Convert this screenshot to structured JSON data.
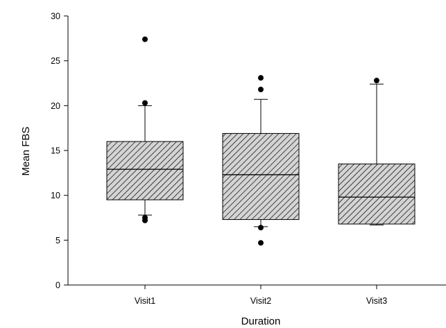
{
  "chart_data": {
    "type": "box",
    "title": "",
    "xlabel": "Duration",
    "ylabel": "Mean FBS",
    "ylim": [
      0,
      30
    ],
    "yticks": [
      0,
      5,
      10,
      15,
      20,
      25,
      30
    ],
    "grid": false,
    "categories": [
      "Visit1",
      "Visit2",
      "Visit3"
    ],
    "boxes": [
      {
        "category": "Visit1",
        "whisker_low": 7.8,
        "q1": 9.5,
        "median": 12.9,
        "q3": 16.0,
        "whisker_high": 20.0,
        "outliers": [
          7.2,
          7.5,
          20.3,
          27.4
        ]
      },
      {
        "category": "Visit2",
        "whisker_low": 6.5,
        "q1": 7.3,
        "median": 12.3,
        "q3": 16.9,
        "whisker_high": 20.7,
        "outliers": [
          6.4,
          4.7,
          21.8,
          23.1
        ]
      },
      {
        "category": "Visit3",
        "whisker_low": 6.7,
        "q1": 6.8,
        "median": 9.8,
        "q3": 13.5,
        "whisker_high": 22.4,
        "outliers": [
          22.8
        ]
      }
    ],
    "box_fill": "hatched",
    "colors": {
      "box_fill": "#d4d4d4",
      "hatch": "#000000",
      "stroke": "#000000",
      "outlier": "#000000"
    }
  }
}
